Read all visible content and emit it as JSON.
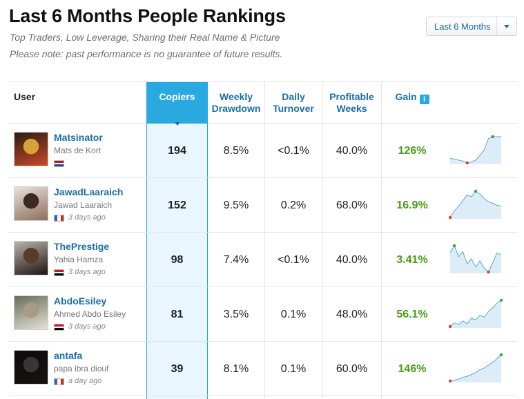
{
  "page": {
    "title": "Last 6 Months People Rankings",
    "subtitle": "Top Traders, Low Leverage, Sharing their Real Name & Picture",
    "note": "Please note: past performance is no guarantee of future results."
  },
  "period_select": {
    "label": "Last 6 Months"
  },
  "columns": {
    "user": "User",
    "copiers": "Copiers",
    "weekly_drawdown": [
      "Weekly",
      "Drawdown"
    ],
    "daily_turnover": [
      "Daily",
      "Turnover"
    ],
    "profitable_weeks": [
      "Profitable",
      "Weeks"
    ],
    "gain": "Gain",
    "gain_info_icon": "info-icon"
  },
  "accent_colors": {
    "link": "#1b6ea6",
    "copiers_header": "#2aa8e0",
    "gain": "#4a9a1a"
  },
  "rows": [
    {
      "username": "Matsinator",
      "real_name": "Mats de Kort",
      "last_seen": "",
      "flag": "netherlands-flag-icon",
      "flag_colors": [
        "#ae1c28",
        "#ffffff",
        "#21468b"
      ],
      "flag_layout": "horizontal",
      "copiers": "194",
      "weekly_drawdown": "8.5%",
      "daily_turnover": "<0.1%",
      "profitable_weeks": "40.0%",
      "gain": "126%",
      "sparkline": [
        5,
        4,
        3,
        2,
        0,
        1,
        3,
        8,
        14,
        26,
        28,
        28,
        28
      ]
    },
    {
      "username": "JawadLaaraich",
      "real_name": "Jawad Laaraich",
      "last_seen": "3 days ago",
      "flag": "france-flag-icon",
      "flag_colors": [
        "#3b5bb5",
        "#ffffff",
        "#d52b1e"
      ],
      "flag_layout": "vertical",
      "copiers": "152",
      "weekly_drawdown": "9.5%",
      "daily_turnover": "0.2%",
      "profitable_weeks": "68.0%",
      "gain": "16.9%",
      "sparkline": [
        0,
        7,
        12,
        18,
        24,
        22,
        28,
        25,
        20,
        17,
        15,
        13,
        12
      ]
    },
    {
      "username": "ThePrestige",
      "real_name": "Yahia Hamza",
      "last_seen": "3 days ago",
      "flag": "egypt-flag-icon",
      "flag_colors": [
        "#ce1126",
        "#ffffff",
        "#000000"
      ],
      "flag_layout": "horizontal",
      "copiers": "98",
      "weekly_drawdown": "7.4%",
      "daily_turnover": "<0.1%",
      "profitable_weeks": "40.0%",
      "gain": "3.41%",
      "sparkline": [
        20,
        27,
        16,
        21,
        9,
        14,
        6,
        12,
        5,
        1,
        10,
        20,
        18
      ]
    },
    {
      "username": "AbdoEsiley",
      "real_name": "Ahmed Abdo Esiley",
      "last_seen": "3 days ago",
      "flag": "egypt-flag-icon",
      "flag_colors": [
        "#ce1126",
        "#ffffff",
        "#000000"
      ],
      "flag_layout": "horizontal",
      "copiers": "81",
      "weekly_drawdown": "3.5%",
      "daily_turnover": "0.1%",
      "profitable_weeks": "48.0%",
      "gain": "56.1%",
      "sparkline": [
        0,
        4,
        2,
        6,
        3,
        9,
        7,
        12,
        10,
        16,
        20,
        25,
        28
      ]
    },
    {
      "username": "antafa",
      "real_name": "papa ibra diouf",
      "last_seen": "a day ago",
      "flag": "france-flag-icon",
      "flag_colors": [
        "#3b5bb5",
        "#ffffff",
        "#d52b1e"
      ],
      "flag_layout": "vertical",
      "copiers": "39",
      "weekly_drawdown": "8.1%",
      "daily_turnover": "0.1%",
      "profitable_weeks": "60.0%",
      "gain": "146%",
      "sparkline": [
        0,
        1,
        2,
        4,
        5,
        7,
        9,
        12,
        14,
        17,
        20,
        24,
        28
      ]
    }
  ]
}
